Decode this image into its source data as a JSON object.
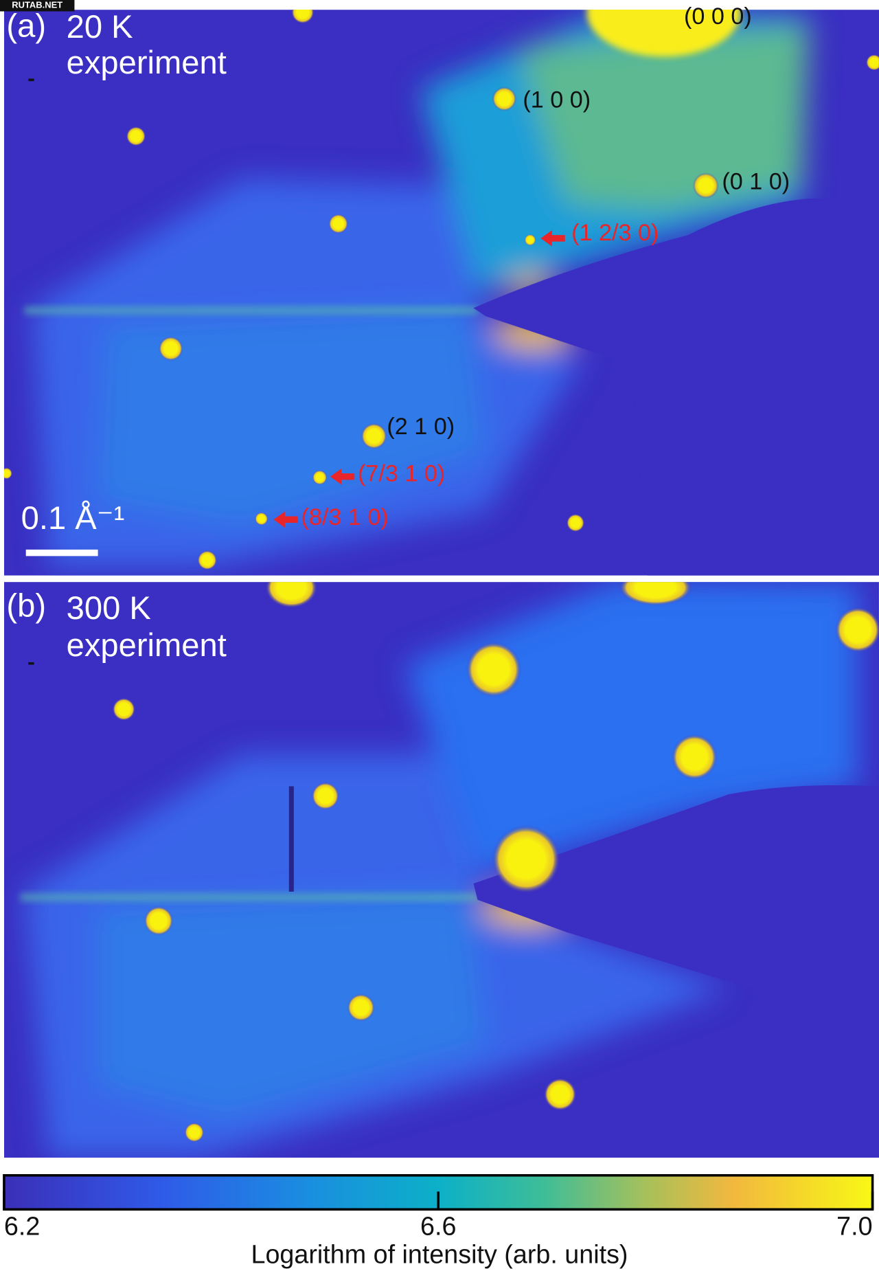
{
  "watermark": "RUTAB.NET",
  "panel_a": {
    "label": "(a)",
    "temperature": "20 K",
    "kind": "experiment",
    "peaks": [
      "(0 0 0)",
      "(1 0 0)",
      "(0 1 0)",
      "(2 1 0)"
    ],
    "superlattice_peaks": [
      "(1 2/3 0)",
      "(7/3 1 0)",
      "(8/3 1 0)"
    ],
    "scale_bar": "0.1 Å⁻¹"
  },
  "panel_b": {
    "label": "(b)",
    "temperature": "300 K",
    "kind": "experiment"
  },
  "colorbar": {
    "title": "Logarithm of intensity (arb. units)",
    "lim": [
      6.2,
      7.0
    ],
    "ticks": [
      6.2,
      6.6,
      {
        "value": 7.0,
        "label": "7.0"
      }
    ]
  }
}
